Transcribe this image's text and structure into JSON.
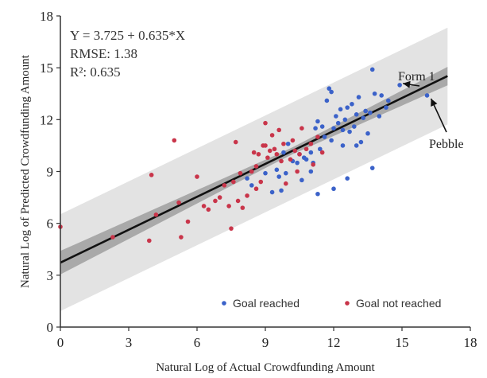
{
  "chart_data": {
    "type": "scatter",
    "xlabel": "Natural Log of Actual Crowdfunding Amount",
    "ylabel": "Natural Log of Predicted Crowdfunding Amount",
    "xlim": [
      0,
      18
    ],
    "ylim": [
      0,
      18
    ],
    "xticks": [
      "0",
      "3",
      "6",
      "9",
      "12",
      "15",
      "18"
    ],
    "yticks": [
      "0",
      "3",
      "6",
      "9",
      "12",
      "15",
      "18"
    ],
    "grid": false,
    "legend_position": "bottom-right",
    "annotation_lines": [
      "Y = 3.725 + 0.635*X",
      "RMSE: 1.38",
      "R²: 0.635"
    ],
    "fit": {
      "intercept": 3.725,
      "slope": 0.635,
      "x_range": [
        0,
        17
      ],
      "ci_halfwidth": 0.35,
      "pi_halfwidth": 2.8
    },
    "point_labels": [
      {
        "text": "Form 1",
        "x": 14.9,
        "y": 14.0
      },
      {
        "text": "Pebble",
        "x": 16.1,
        "y": 13.4
      }
    ],
    "series": [
      {
        "name": "Goal reached",
        "color": "#3b62c9",
        "points": [
          [
            8.2,
            8.6
          ],
          [
            8.4,
            8.2
          ],
          [
            9.0,
            8.9
          ],
          [
            9.3,
            7.8
          ],
          [
            9.5,
            9.1
          ],
          [
            9.6,
            8.7
          ],
          [
            9.8,
            10.1
          ],
          [
            9.9,
            8.9
          ],
          [
            10.0,
            10.6
          ],
          [
            10.2,
            9.6
          ],
          [
            10.4,
            9.5
          ],
          [
            10.5,
            10.0
          ],
          [
            10.7,
            9.8
          ],
          [
            10.8,
            9.7
          ],
          [
            11.0,
            10.1
          ],
          [
            11.1,
            9.5
          ],
          [
            11.2,
            11.5
          ],
          [
            11.3,
            11.9
          ],
          [
            11.4,
            10.3
          ],
          [
            11.5,
            11.6
          ],
          [
            11.6,
            11.0
          ],
          [
            11.7,
            13.1
          ],
          [
            11.8,
            13.8
          ],
          [
            11.9,
            13.6
          ],
          [
            12.0,
            11.5
          ],
          [
            12.1,
            12.2
          ],
          [
            12.2,
            11.8
          ],
          [
            12.3,
            12.6
          ],
          [
            12.4,
            11.4
          ],
          [
            12.5,
            12.0
          ],
          [
            12.6,
            12.7
          ],
          [
            12.7,
            11.3
          ],
          [
            12.8,
            12.9
          ],
          [
            12.9,
            11.6
          ],
          [
            13.0,
            12.3
          ],
          [
            13.1,
            13.3
          ],
          [
            13.2,
            10.7
          ],
          [
            13.3,
            12.1
          ],
          [
            13.4,
            12.5
          ],
          [
            13.5,
            11.2
          ],
          [
            13.6,
            12.4
          ],
          [
            13.7,
            14.9
          ],
          [
            13.8,
            13.5
          ],
          [
            14.0,
            12.2
          ],
          [
            14.1,
            13.4
          ],
          [
            14.3,
            12.7
          ],
          [
            14.4,
            13.1
          ],
          [
            12.0,
            8.0
          ],
          [
            11.3,
            7.7
          ],
          [
            13.7,
            9.2
          ],
          [
            12.6,
            8.6
          ],
          [
            11.0,
            9.0
          ],
          [
            9.7,
            7.9
          ],
          [
            10.6,
            8.5
          ],
          [
            11.9,
            10.8
          ],
          [
            12.4,
            10.5
          ],
          [
            13.0,
            10.5
          ],
          [
            14.9,
            14.0
          ],
          [
            16.1,
            13.4
          ]
        ]
      },
      {
        "name": "Goal not reached",
        "color": "#c9354a",
        "points": [
          [
            0.0,
            5.8
          ],
          [
            2.3,
            5.2
          ],
          [
            3.9,
            5.0
          ],
          [
            4.0,
            8.8
          ],
          [
            4.2,
            6.5
          ],
          [
            5.0,
            10.8
          ],
          [
            5.2,
            7.2
          ],
          [
            5.3,
            5.2
          ],
          [
            5.6,
            6.1
          ],
          [
            6.0,
            8.7
          ],
          [
            6.3,
            7.0
          ],
          [
            6.8,
            7.3
          ],
          [
            7.0,
            7.5
          ],
          [
            7.2,
            8.2
          ],
          [
            7.4,
            7.0
          ],
          [
            7.5,
            5.7
          ],
          [
            7.6,
            8.4
          ],
          [
            7.7,
            10.7
          ],
          [
            7.8,
            7.3
          ],
          [
            7.9,
            8.9
          ],
          [
            8.0,
            6.9
          ],
          [
            8.2,
            7.6
          ],
          [
            8.4,
            9.0
          ],
          [
            8.5,
            10.1
          ],
          [
            8.6,
            9.3
          ],
          [
            8.7,
            10.0
          ],
          [
            8.8,
            8.4
          ],
          [
            8.9,
            10.5
          ],
          [
            9.0,
            11.8
          ],
          [
            9.1,
            9.8
          ],
          [
            9.2,
            10.2
          ],
          [
            9.3,
            11.1
          ],
          [
            9.4,
            10.3
          ],
          [
            9.5,
            10.0
          ],
          [
            9.6,
            11.4
          ],
          [
            9.7,
            9.6
          ],
          [
            9.8,
            10.6
          ],
          [
            9.9,
            8.3
          ],
          [
            10.1,
            9.7
          ],
          [
            10.2,
            10.8
          ],
          [
            10.4,
            9.0
          ],
          [
            10.5,
            10.0
          ],
          [
            10.6,
            11.5
          ],
          [
            10.8,
            10.3
          ],
          [
            11.0,
            10.6
          ],
          [
            11.1,
            9.4
          ],
          [
            11.3,
            11.0
          ],
          [
            11.5,
            10.1
          ],
          [
            10.3,
            10.2
          ],
          [
            9.0,
            10.5
          ],
          [
            8.6,
            8.0
          ],
          [
            6.5,
            6.8
          ]
        ]
      }
    ]
  }
}
